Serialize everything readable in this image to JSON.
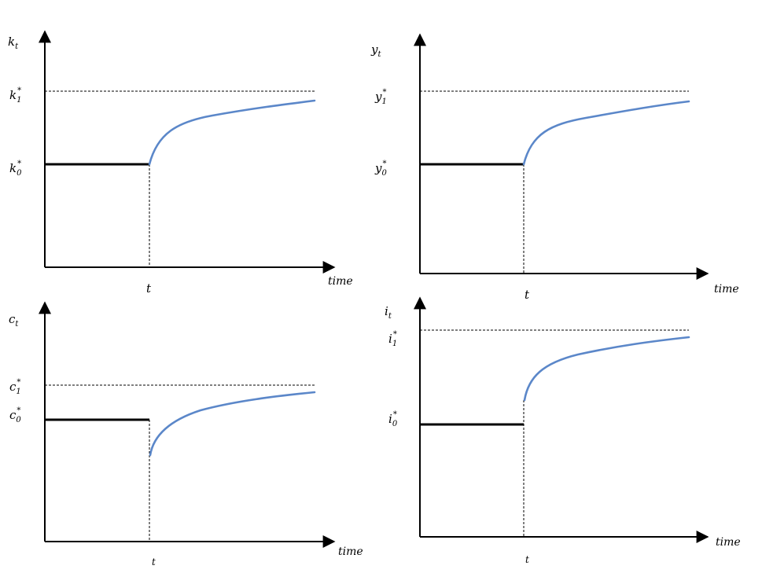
{
  "panels": [
    {
      "id": "k",
      "y_axis_label": "k_t",
      "steady_new_label": "k*_1",
      "steady_old_label": "k*_0",
      "shock_time_label": "t",
      "x_axis_label": "time",
      "response": "rises smoothly from old steady state toward new steady state"
    },
    {
      "id": "y",
      "y_axis_label": "y_t",
      "steady_new_label": "y*_1",
      "steady_old_label": "y*_0",
      "shock_time_label": "t",
      "x_axis_label": "time",
      "response": "rises smoothly from old steady state toward new steady state"
    },
    {
      "id": "c",
      "y_axis_label": "c_t",
      "steady_new_label": "c*_1",
      "steady_old_label": "c*_0",
      "shock_time_label": "t",
      "x_axis_label": "time",
      "response": "drops at t, then rises toward new steady state"
    },
    {
      "id": "i",
      "y_axis_label": "i_t",
      "steady_new_label": "i*_1",
      "steady_old_label": "i*_0",
      "shock_time_label": "t",
      "x_axis_label": "time",
      "response": "jumps up at t, then rises toward new steady state"
    }
  ],
  "colors": {
    "axis": "#000000",
    "old_path": "#000000",
    "new_path": "#5b87c9"
  }
}
